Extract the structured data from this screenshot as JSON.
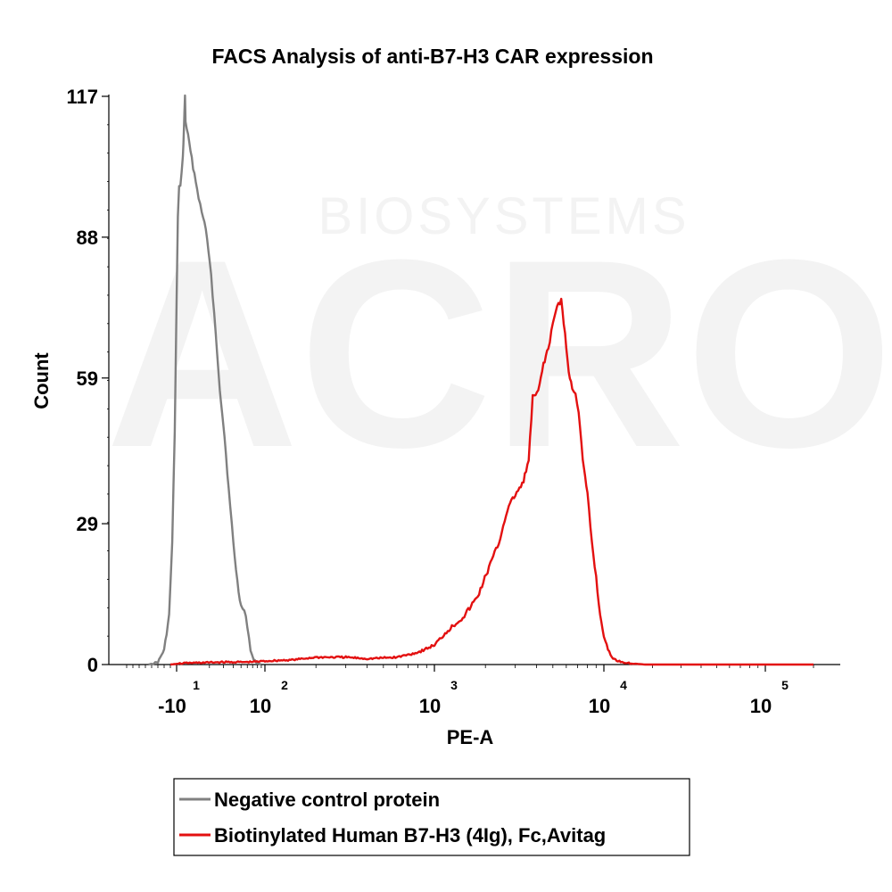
{
  "chart_data": {
    "type": "line",
    "title": "FACS Analysis of anti-B7-H3 CAR expression",
    "xlabel": "PE-A",
    "ylabel": "Count",
    "x_scale": "biexponential",
    "ylim": [
      0,
      117
    ],
    "y_ticks": [
      "0",
      "29",
      "59",
      "88",
      "117"
    ],
    "x_ticks": [
      {
        "base": "-10",
        "exp": "1",
        "value": -10
      },
      {
        "base": "10",
        "exp": "2",
        "value": 100
      },
      {
        "base": "10",
        "exp": "3",
        "value": 1000
      },
      {
        "base": "10",
        "exp": "4",
        "value": 10000
      },
      {
        "base": "10",
        "exp": "5",
        "value": 100000
      }
    ],
    "legend_position": "bottom",
    "series": [
      {
        "name": "Negative control protein",
        "color": "#808080",
        "points": [
          [
            -55,
            0
          ],
          [
            -40,
            0.5
          ],
          [
            -30,
            3
          ],
          [
            -22,
            10
          ],
          [
            -17,
            25
          ],
          [
            -13,
            48
          ],
          [
            -10,
            75
          ],
          [
            -8,
            92
          ],
          [
            -6,
            98
          ],
          [
            -4,
            99
          ],
          [
            -2,
            101
          ],
          [
            0,
            105
          ],
          [
            2,
            107
          ],
          [
            4,
            110
          ],
          [
            6,
            114
          ],
          [
            8,
            117
          ],
          [
            10,
            112
          ],
          [
            12,
            104
          ],
          [
            14,
            98
          ],
          [
            16,
            93
          ],
          [
            18,
            90
          ],
          [
            21,
            80
          ],
          [
            24,
            68
          ],
          [
            27,
            57
          ],
          [
            31,
            47
          ],
          [
            35,
            36
          ],
          [
            40,
            25
          ],
          [
            45,
            17
          ],
          [
            50,
            12
          ],
          [
            55,
            11
          ],
          [
            60,
            8
          ],
          [
            66,
            3
          ],
          [
            72,
            1
          ],
          [
            80,
            0.3
          ],
          [
            90,
            0
          ]
        ]
      },
      {
        "name": "Biotinylated Human B7-H3 (4Ig), Fc,Avitag",
        "color": "#e31010",
        "points": [
          [
            -20,
            0
          ],
          [
            -5,
            0.2
          ],
          [
            10,
            0.3
          ],
          [
            30,
            0.5
          ],
          [
            60,
            0.5
          ],
          [
            100,
            0.7
          ],
          [
            150,
            1
          ],
          [
            200,
            1.5
          ],
          [
            300,
            1.5
          ],
          [
            400,
            1.2
          ],
          [
            600,
            1.5
          ],
          [
            800,
            2.5
          ],
          [
            1000,
            4
          ],
          [
            1200,
            7
          ],
          [
            1500,
            10
          ],
          [
            1800,
            14
          ],
          [
            2100,
            20
          ],
          [
            2400,
            25
          ],
          [
            2700,
            32
          ],
          [
            3000,
            35
          ],
          [
            3300,
            37
          ],
          [
            3600,
            42
          ],
          [
            3800,
            55
          ],
          [
            4100,
            56
          ],
          [
            4400,
            62
          ],
          [
            4700,
            65
          ],
          [
            5000,
            70
          ],
          [
            5300,
            74
          ],
          [
            5600,
            75
          ],
          [
            5900,
            68
          ],
          [
            6200,
            60
          ],
          [
            6500,
            57
          ],
          [
            6800,
            56
          ],
          [
            7100,
            52
          ],
          [
            7500,
            42
          ],
          [
            8000,
            35
          ],
          [
            8500,
            25
          ],
          [
            9000,
            18
          ],
          [
            9500,
            10
          ],
          [
            10000,
            6
          ],
          [
            10600,
            3
          ],
          [
            11200,
            1.5
          ],
          [
            12000,
            0.8
          ],
          [
            14000,
            0.3
          ],
          [
            18000,
            0
          ],
          [
            40000,
            0
          ],
          [
            100000,
            0
          ],
          [
            200000,
            0
          ]
        ]
      }
    ]
  },
  "watermark": {
    "brand": "ACRO",
    "subtitle": "BIOSYSTEMS"
  }
}
